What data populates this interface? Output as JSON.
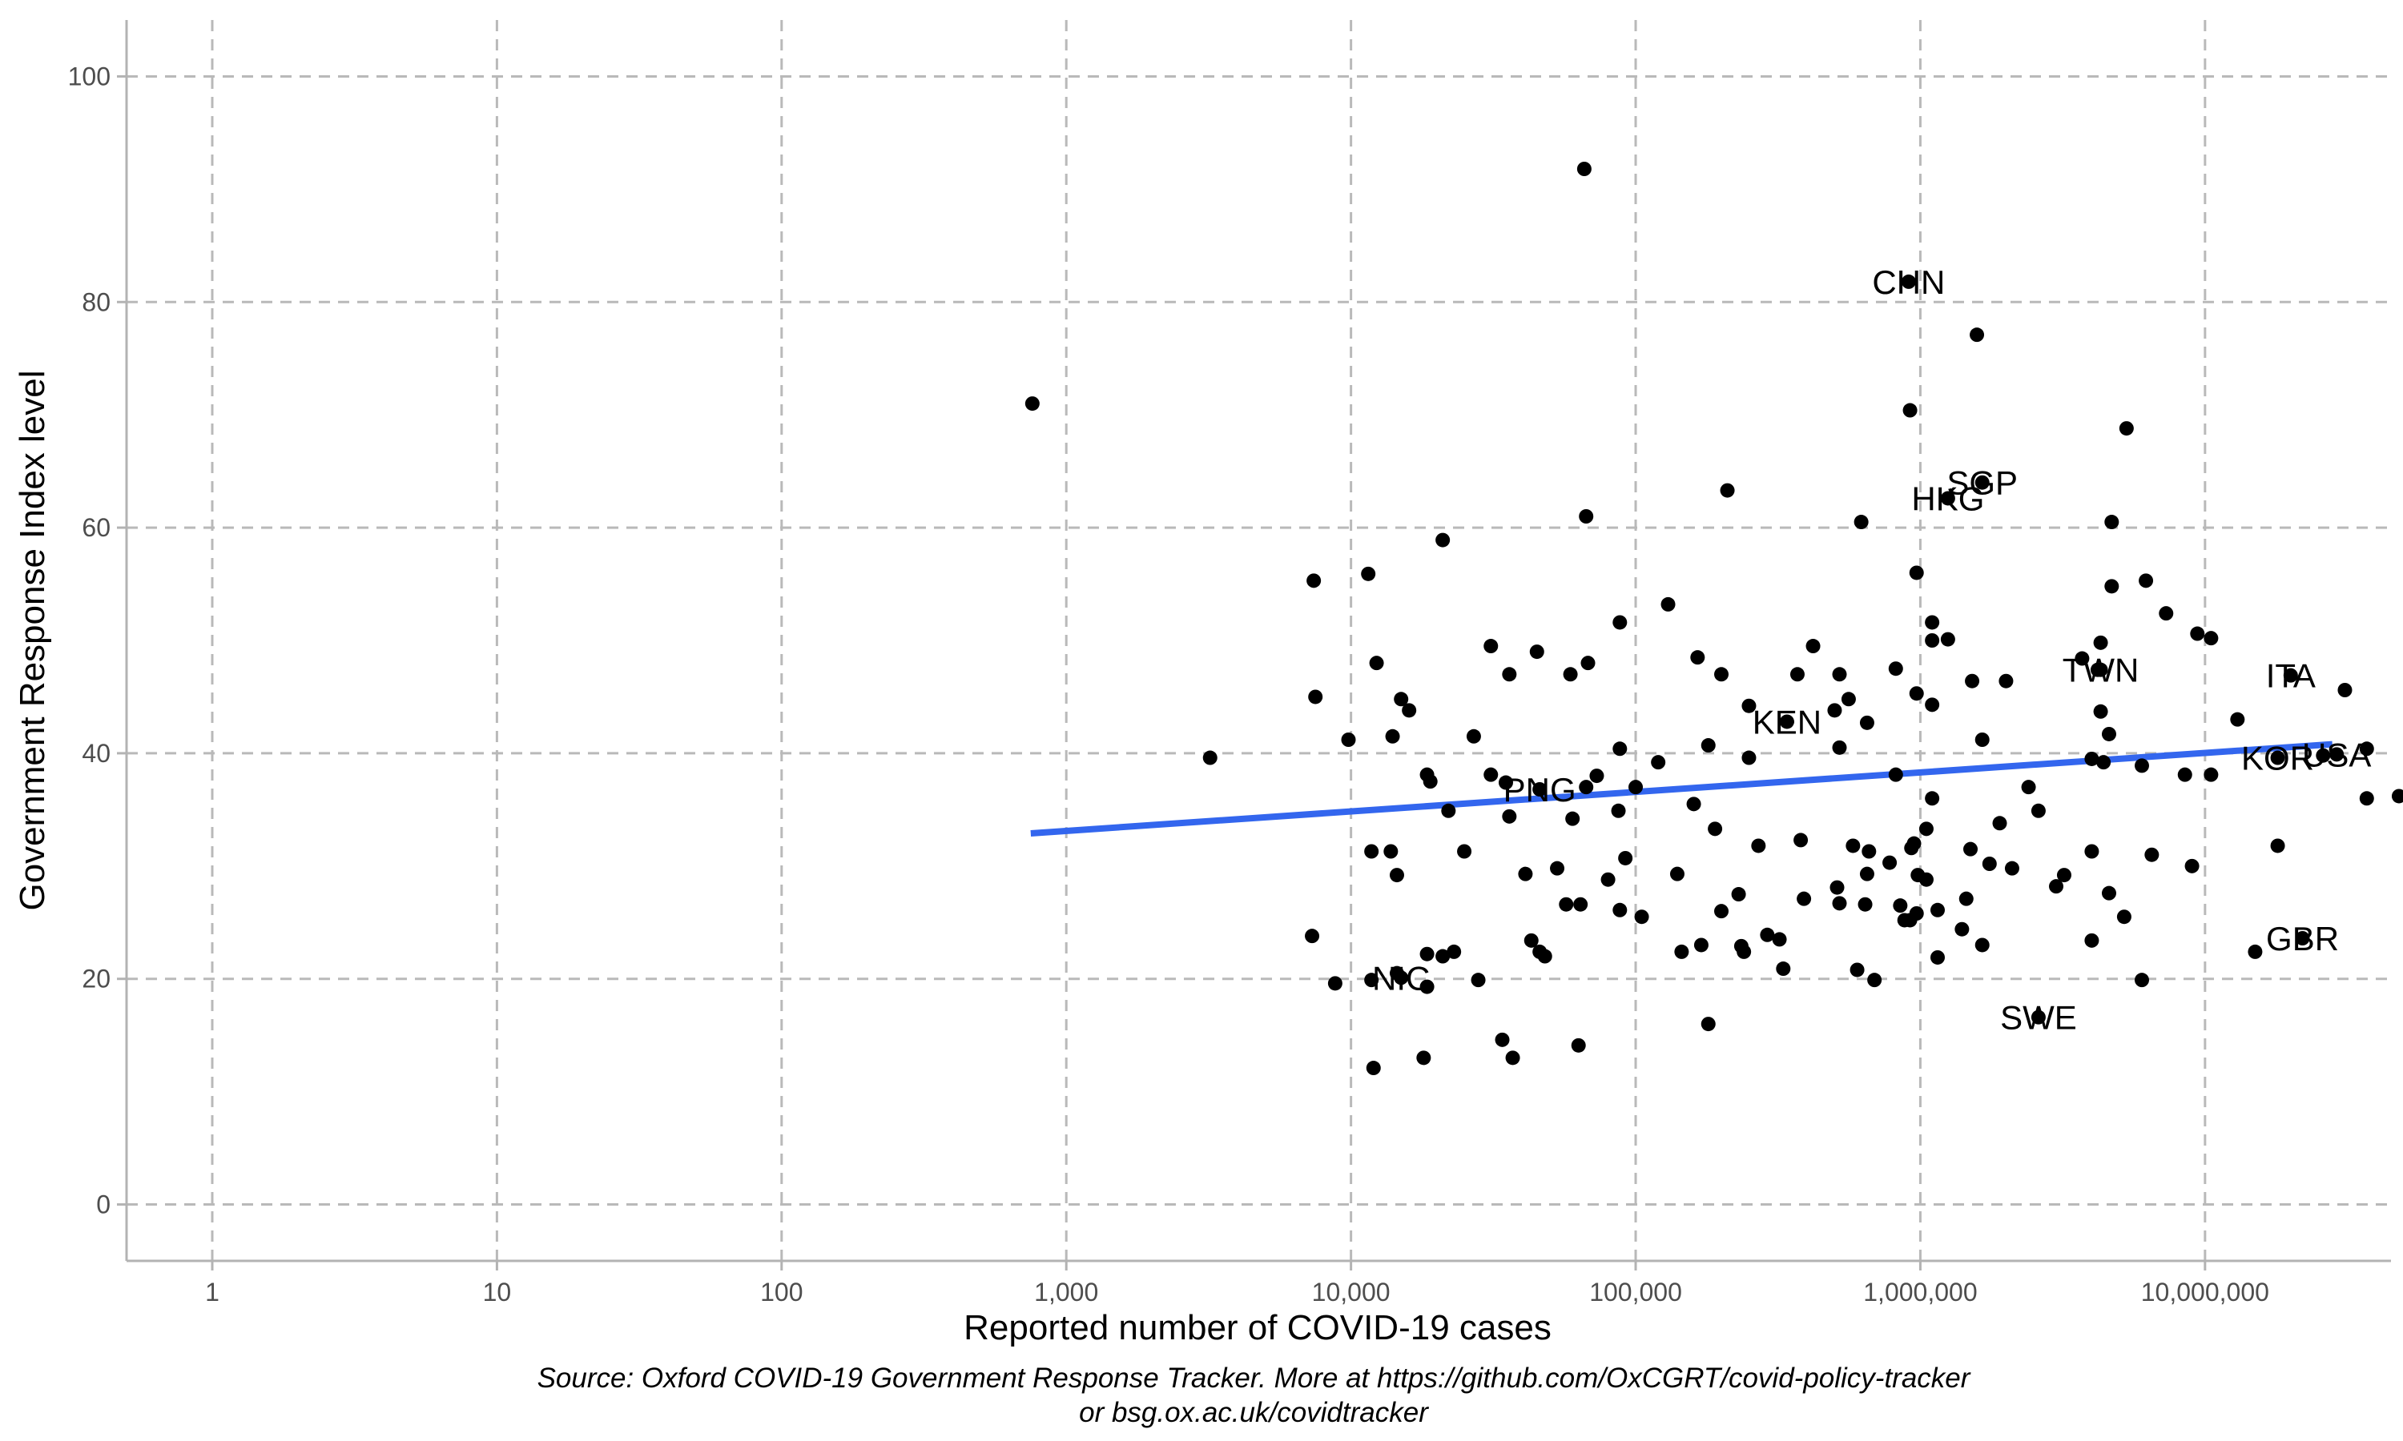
{
  "chart_data": {
    "type": "scatter",
    "xscale": "log10",
    "xlabel": "Reported number of COVID-19 cases",
    "ylabel": "Government Response Index level",
    "xlim": [
      0.5,
      45000000
    ],
    "ylim": [
      -5,
      105
    ],
    "xticks": [
      {
        "value": 1,
        "label": "1"
      },
      {
        "value": 10,
        "label": "10"
      },
      {
        "value": 100,
        "label": "100"
      },
      {
        "value": 1000,
        "label": "1,000"
      },
      {
        "value": 10000,
        "label": "10,000"
      },
      {
        "value": 100000,
        "label": "100,000"
      },
      {
        "value": 1000000,
        "label": "1,000,000"
      },
      {
        "value": 10000000,
        "label": "10,000,000"
      }
    ],
    "yticks": [
      {
        "value": 0,
        "label": "0"
      },
      {
        "value": 20,
        "label": "20"
      },
      {
        "value": 40,
        "label": "40"
      },
      {
        "value": 60,
        "label": "60"
      },
      {
        "value": 80,
        "label": "80"
      },
      {
        "value": 100,
        "label": "100"
      }
    ],
    "grid": true,
    "trend_line": {
      "color": "#3366ee",
      "points": [
        [
          750,
          32.9
        ],
        [
          28000000,
          40.8
        ]
      ]
    },
    "labeled_points": [
      {
        "label": "CHN",
        "x": 910000,
        "y": 81.8
      },
      {
        "label": "SGP",
        "x": 1650000,
        "y": 64.0
      },
      {
        "label": "HKG",
        "x": 1250000,
        "y": 62.6
      },
      {
        "label": "TWN",
        "x": 4300000,
        "y": 47.4
      },
      {
        "label": "ITA",
        "x": 20000000,
        "y": 46.9
      },
      {
        "label": "KEN",
        "x": 340000,
        "y": 42.8
      },
      {
        "label": "KOR",
        "x": 18000000,
        "y": 39.6
      },
      {
        "label": "USA",
        "x": 29000000,
        "y": 39.9
      },
      {
        "label": "PNG",
        "x": 46000,
        "y": 36.8
      },
      {
        "label": "GBR",
        "x": 22000000,
        "y": 23.6
      },
      {
        "label": "NIC",
        "x": 15000,
        "y": 20.1
      },
      {
        "label": "SWE",
        "x": 2600000,
        "y": 16.6
      }
    ],
    "points": [
      [
        760,
        71
      ],
      [
        3200,
        39.6
      ],
      [
        66000,
        91.8
      ],
      [
        1580000,
        77.1
      ],
      [
        5300000,
        68.8
      ],
      [
        920000,
        70.4
      ],
      [
        210000,
        63.3
      ],
      [
        620000,
        60.5
      ],
      [
        67000,
        61
      ],
      [
        4700000,
        60.5
      ],
      [
        21000,
        58.9
      ],
      [
        11500,
        55.9
      ],
      [
        7400,
        55.3
      ],
      [
        970000,
        56
      ],
      [
        6200000,
        55.3
      ],
      [
        4700000,
        54.8
      ],
      [
        130000,
        53.2
      ],
      [
        7300000,
        52.4
      ],
      [
        88000,
        51.6
      ],
      [
        1100000,
        51.6
      ],
      [
        9400000,
        50.6
      ],
      [
        10500000,
        50.2
      ],
      [
        1250000,
        50.1
      ],
      [
        1100000,
        50
      ],
      [
        420000,
        49.5
      ],
      [
        4300000,
        49.8
      ],
      [
        31000,
        49.5
      ],
      [
        45000,
        49
      ],
      [
        12300,
        48
      ],
      [
        68000,
        48
      ],
      [
        165000,
        48.5
      ],
      [
        3700000,
        48.4
      ],
      [
        820000,
        47.5
      ],
      [
        370000,
        47
      ],
      [
        520000,
        47
      ],
      [
        200000,
        47
      ],
      [
        36000,
        47
      ],
      [
        59000,
        47
      ],
      [
        1520000,
        46.4
      ],
      [
        2000000,
        46.4
      ],
      [
        4200000,
        47.4
      ],
      [
        31000000,
        45.6
      ],
      [
        970000,
        45.3
      ],
      [
        7500,
        45
      ],
      [
        15000,
        44.8
      ],
      [
        1100000,
        44.3
      ],
      [
        16000,
        43.8
      ],
      [
        4300000,
        43.7
      ],
      [
        560000,
        44.8
      ],
      [
        250000,
        44.2
      ],
      [
        500000,
        43.8
      ],
      [
        13000000,
        43
      ],
      [
        650000,
        42.7
      ],
      [
        4600000,
        41.7
      ],
      [
        14000,
        41.5
      ],
      [
        27000,
        41.5
      ],
      [
        9800,
        41.2
      ],
      [
        1650000,
        41.2
      ],
      [
        180000,
        40.7
      ],
      [
        520000,
        40.5
      ],
      [
        88000,
        40.4
      ],
      [
        37000000,
        40.4
      ],
      [
        26000000,
        39.8
      ],
      [
        250000,
        39.6
      ],
      [
        4000000,
        39.5
      ],
      [
        4400000,
        39.2
      ],
      [
        120000,
        39.2
      ],
      [
        6000000,
        38.9
      ],
      [
        8500000,
        38.1
      ],
      [
        10500000,
        38.1
      ],
      [
        18500,
        38.1
      ],
      [
        31000,
        38.1
      ],
      [
        73000,
        38
      ],
      [
        820000,
        38.1
      ],
      [
        19000,
        37.5
      ],
      [
        35000,
        37.4
      ],
      [
        2400000,
        37
      ],
      [
        100000,
        37
      ],
      [
        67000,
        37
      ],
      [
        37000000,
        36
      ],
      [
        48000000,
        36.2
      ],
      [
        160000,
        35.5
      ],
      [
        1100000,
        36
      ],
      [
        2600000,
        34.9
      ],
      [
        22000,
        34.9
      ],
      [
        36000,
        34.4
      ],
      [
        60000,
        34.2
      ],
      [
        87000,
        34.9
      ],
      [
        1050000,
        33.3
      ],
      [
        190000,
        33.3
      ],
      [
        1900000,
        33.8
      ],
      [
        270000,
        31.8
      ],
      [
        380000,
        32.3
      ],
      [
        580000,
        31.8
      ],
      [
        1500000,
        31.5
      ],
      [
        11800,
        31.3
      ],
      [
        13800,
        31.3
      ],
      [
        25000,
        31.3
      ],
      [
        92000,
        30.7
      ],
      [
        660000,
        31.3
      ],
      [
        950000,
        32
      ],
      [
        930000,
        31.6
      ],
      [
        4000000,
        31.3
      ],
      [
        6500000,
        31
      ],
      [
        9000000,
        30
      ],
      [
        1750000,
        30.2
      ],
      [
        2100000,
        29.8
      ],
      [
        780000,
        30.3
      ],
      [
        980000,
        29.2
      ],
      [
        14500,
        29.2
      ],
      [
        41000,
        29.3
      ],
      [
        53000,
        29.8
      ],
      [
        80000,
        28.8
      ],
      [
        140000,
        29.3
      ],
      [
        650000,
        29.3
      ],
      [
        1050000,
        28.8
      ],
      [
        3000000,
        28.2
      ],
      [
        3200000,
        29.2
      ],
      [
        18000000,
        31.8
      ],
      [
        510000,
        28.1
      ],
      [
        4600000,
        27.6
      ],
      [
        230000,
        27.5
      ],
      [
        390000,
        27.1
      ],
      [
        520000,
        26.7
      ],
      [
        640000,
        26.6
      ],
      [
        850000,
        26.5
      ],
      [
        1150000,
        26.1
      ],
      [
        1450000,
        27.1
      ],
      [
        57000,
        26.6
      ],
      [
        64000,
        26.6
      ],
      [
        88000,
        26.1
      ],
      [
        105000,
        25.5
      ],
      [
        200000,
        26
      ],
      [
        880000,
        25.2
      ],
      [
        970000,
        25.8
      ],
      [
        920000,
        25.2
      ],
      [
        5200000,
        25.5
      ],
      [
        7300,
        23.8
      ],
      [
        43000,
        23.4
      ],
      [
        170000,
        23
      ],
      [
        290000,
        23.9
      ],
      [
        320000,
        23.5
      ],
      [
        240000,
        22.4
      ],
      [
        1400000,
        24.4
      ],
      [
        1650000,
        23
      ],
      [
        4000000,
        23.4
      ],
      [
        15000000,
        22.4
      ],
      [
        18500,
        22.2
      ],
      [
        21000,
        22
      ],
      [
        23000,
        22.4
      ],
      [
        46000,
        22.4
      ],
      [
        48000,
        22
      ],
      [
        145000,
        22.4
      ],
      [
        235000,
        22.9
      ],
      [
        1150000,
        21.9
      ],
      [
        600000,
        20.8
      ],
      [
        330000,
        20.9
      ],
      [
        8800,
        19.6
      ],
      [
        11800,
        19.9
      ],
      [
        14500,
        20.5
      ],
      [
        28000,
        19.9
      ],
      [
        18500,
        19.3
      ],
      [
        690000,
        19.9
      ],
      [
        6000000,
        19.9
      ],
      [
        180000,
        16
      ],
      [
        12000,
        12.1
      ],
      [
        18000,
        13
      ],
      [
        34000,
        14.6
      ],
      [
        37000,
        13
      ],
      [
        63000,
        14.1
      ]
    ],
    "source_caption": [
      "Source: Oxford COVID-19 Government Response Tracker. More at https://github.com/OxCGRT/covid-policy-tracker",
      "or bsg.ox.ac.uk/covidtracker"
    ]
  }
}
